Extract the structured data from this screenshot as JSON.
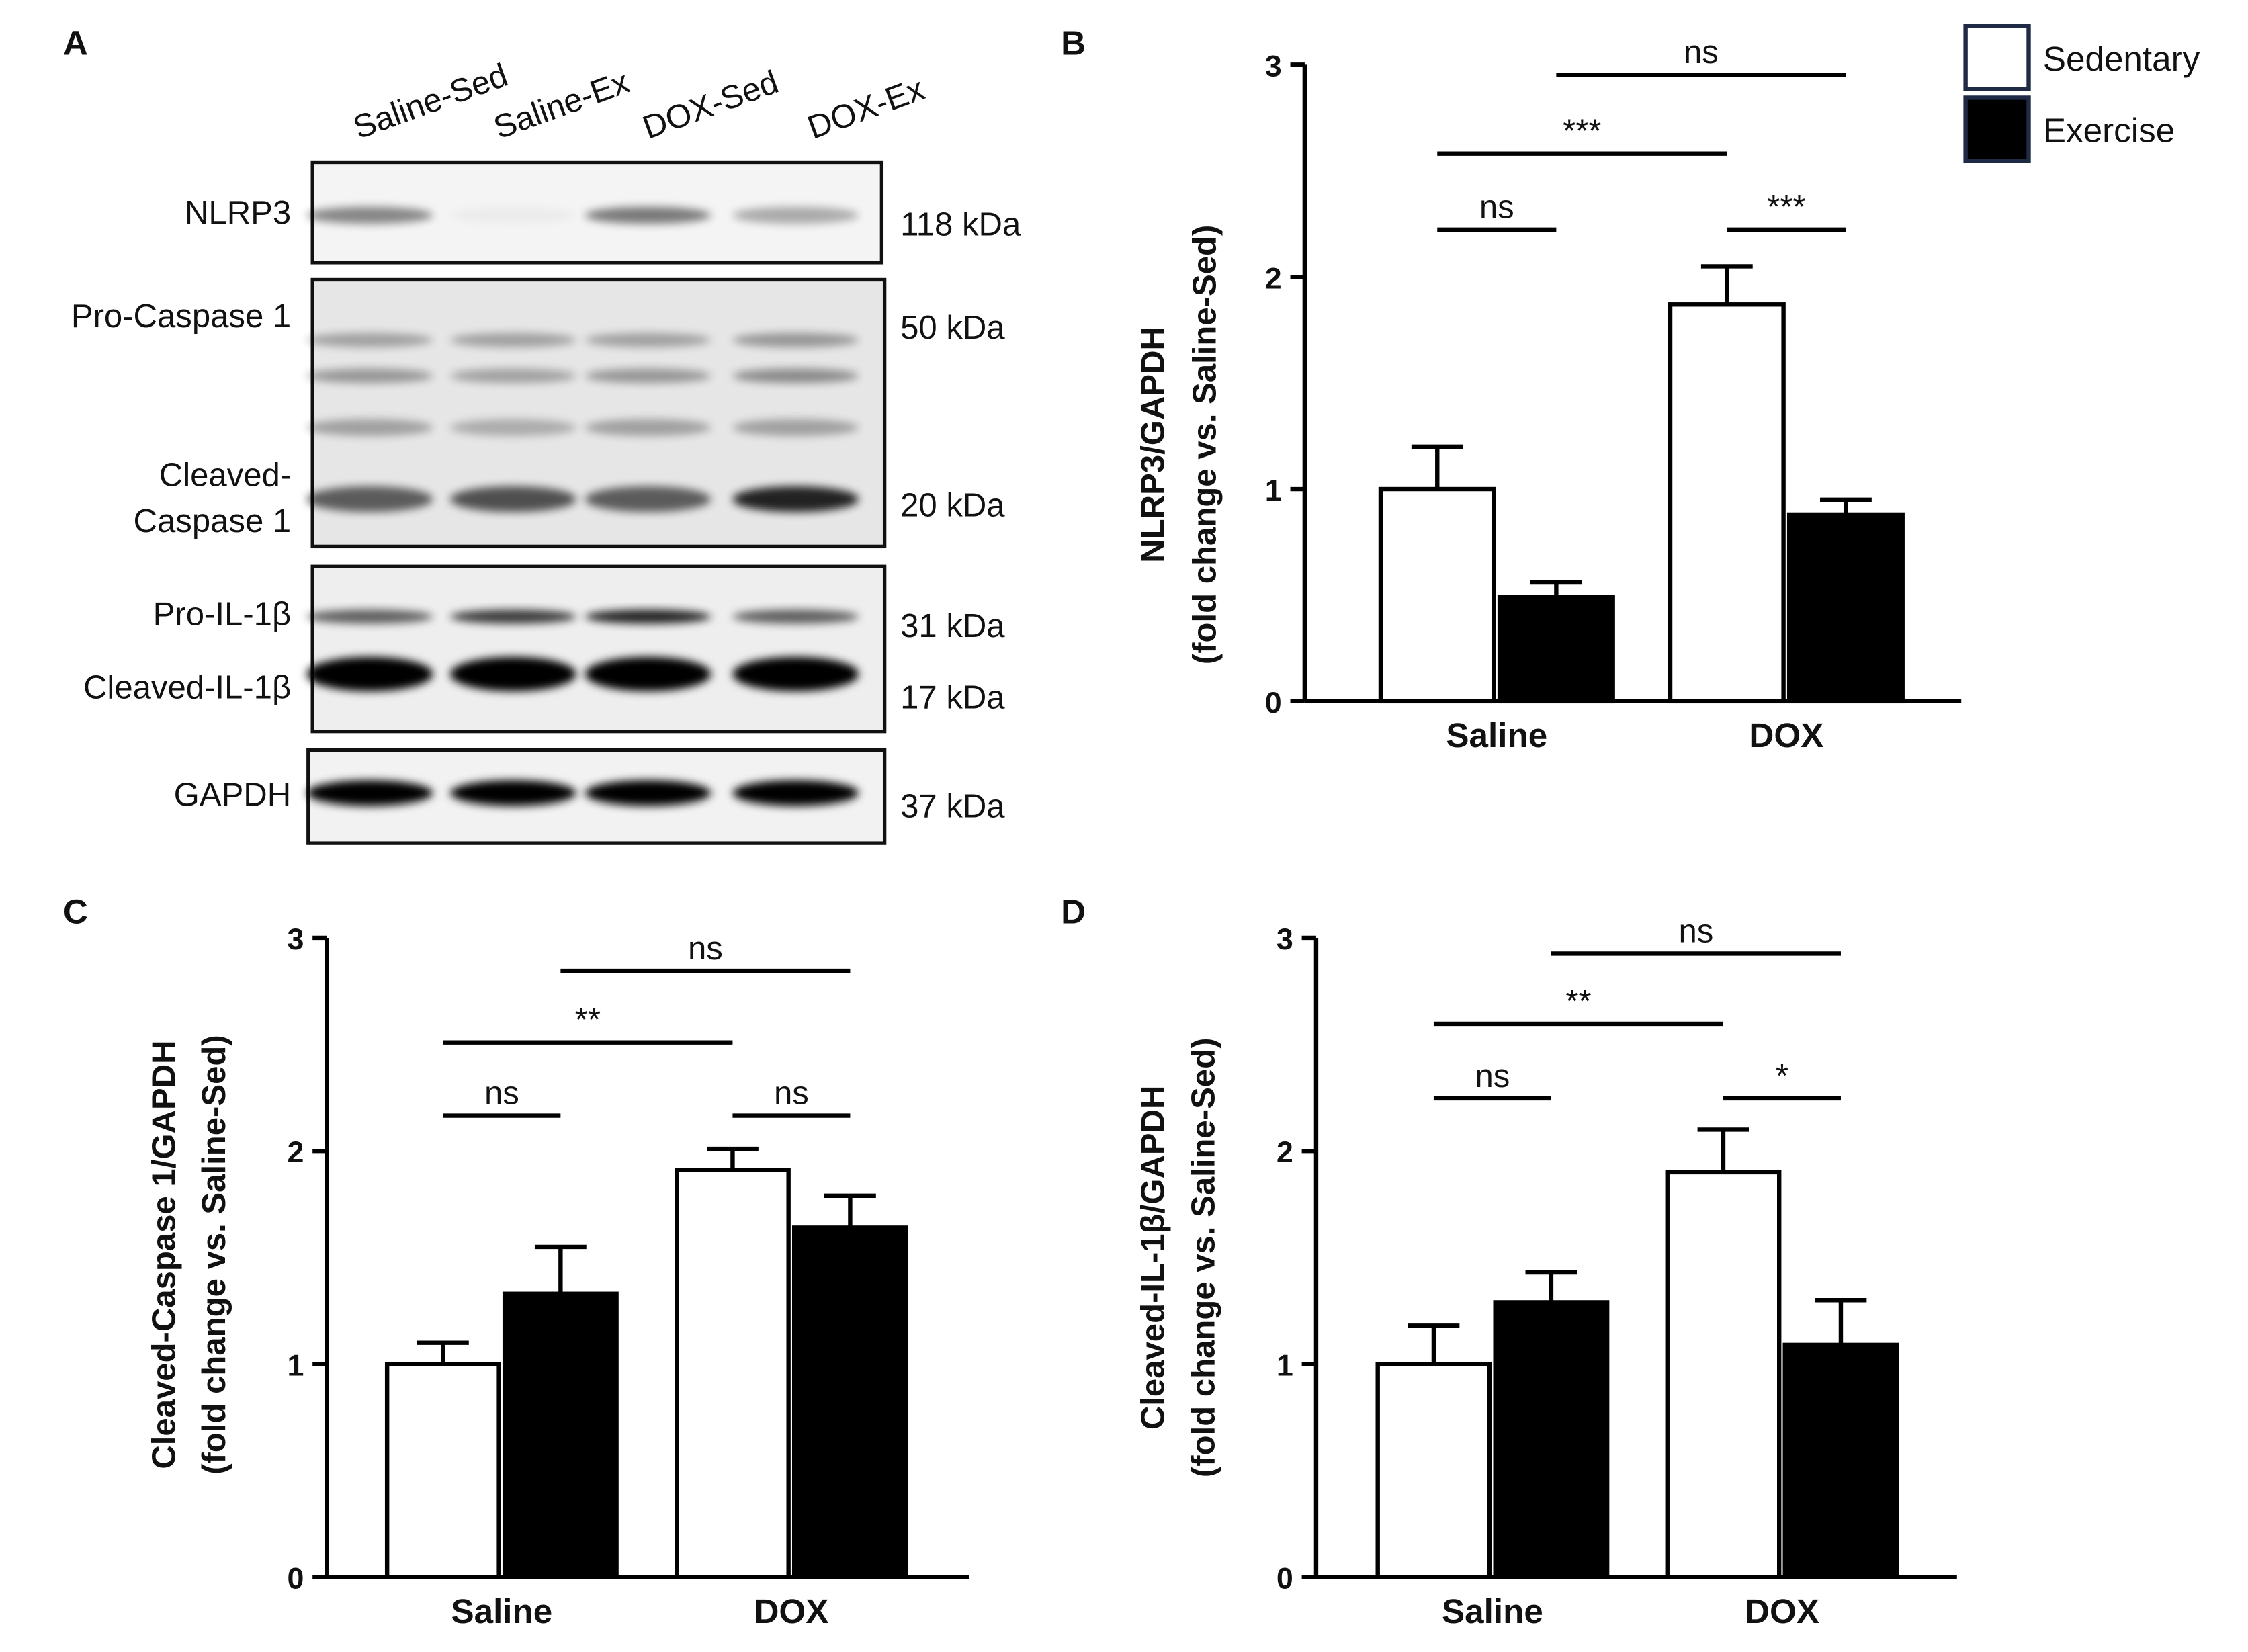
{
  "blot": {
    "panel_label": "A",
    "lanes": [
      "Saline-Sed",
      "Saline-Ex",
      "DOX-Sed",
      "DOX-Ex"
    ],
    "rows": [
      {
        "proteins": [
          "NLRP3"
        ],
        "markers": [
          "118 kDa"
        ]
      },
      {
        "proteins": [
          "Pro-Caspase 1",
          "Cleaved-",
          "Caspase 1"
        ],
        "markers": [
          "50 kDa",
          "20 kDa"
        ]
      },
      {
        "proteins": [
          "Pro-IL-1β",
          "Cleaved-IL-1β"
        ],
        "markers": [
          "31 kDa",
          "17 kDa"
        ]
      },
      {
        "proteins": [
          "GAPDH"
        ],
        "markers": [
          "37 kDa"
        ]
      }
    ]
  },
  "chart_data": [
    {
      "type": "bar",
      "panel_label": "B",
      "ylabel": [
        "NLRP3/GAPDH",
        "(fold change vs. Saline-Sed)"
      ],
      "categories": [
        "Saline",
        "DOX"
      ],
      "series": [
        {
          "name": "Sedentary",
          "color": "#ffffff",
          "values": [
            1.0,
            1.87
          ],
          "errors": [
            0.2,
            0.18
          ]
        },
        {
          "name": "Exercise",
          "color": "#000000",
          "values": [
            0.49,
            0.88
          ],
          "errors": [
            0.07,
            0.07
          ]
        }
      ],
      "ylim": [
        0,
        3
      ],
      "yticks": [
        0,
        1,
        2,
        3
      ],
      "legend": "outside-upper-right",
      "annotations": [
        "ns",
        "***",
        "***",
        "ns"
      ]
    },
    {
      "type": "bar",
      "panel_label": "C",
      "ylabel": [
        "Cleaved-Caspase 1/GAPDH",
        "(fold change vs. Saline-Sed)"
      ],
      "categories": [
        "Saline",
        "DOX"
      ],
      "series": [
        {
          "name": "Sedentary",
          "color": "#ffffff",
          "values": [
            1.0,
            1.91
          ],
          "errors": [
            0.1,
            0.1
          ]
        },
        {
          "name": "Exercise",
          "color": "#000000",
          "values": [
            1.33,
            1.64
          ],
          "errors": [
            0.22,
            0.15
          ]
        }
      ],
      "ylim": [
        0,
        3
      ],
      "yticks": [
        0,
        1,
        2,
        3
      ],
      "legend": false,
      "annotations": [
        "ns",
        "ns",
        "**",
        "ns"
      ]
    },
    {
      "type": "bar",
      "panel_label": "D",
      "ylabel": [
        "Cleaved-IL-1β/GAPDH",
        "(fold change vs. Saline-Sed)"
      ],
      "categories": [
        "Saline",
        "DOX"
      ],
      "series": [
        {
          "name": "Sedentary",
          "color": "#ffffff",
          "values": [
            1.0,
            1.9
          ],
          "errors": [
            0.18,
            0.2
          ]
        },
        {
          "name": "Exercise",
          "color": "#000000",
          "values": [
            1.29,
            1.09
          ],
          "errors": [
            0.14,
            0.21
          ]
        }
      ],
      "ylim": [
        0,
        3
      ],
      "yticks": [
        0,
        1,
        2,
        3
      ],
      "legend": false,
      "annotations": [
        "ns",
        "*",
        "**",
        "ns"
      ]
    }
  ]
}
